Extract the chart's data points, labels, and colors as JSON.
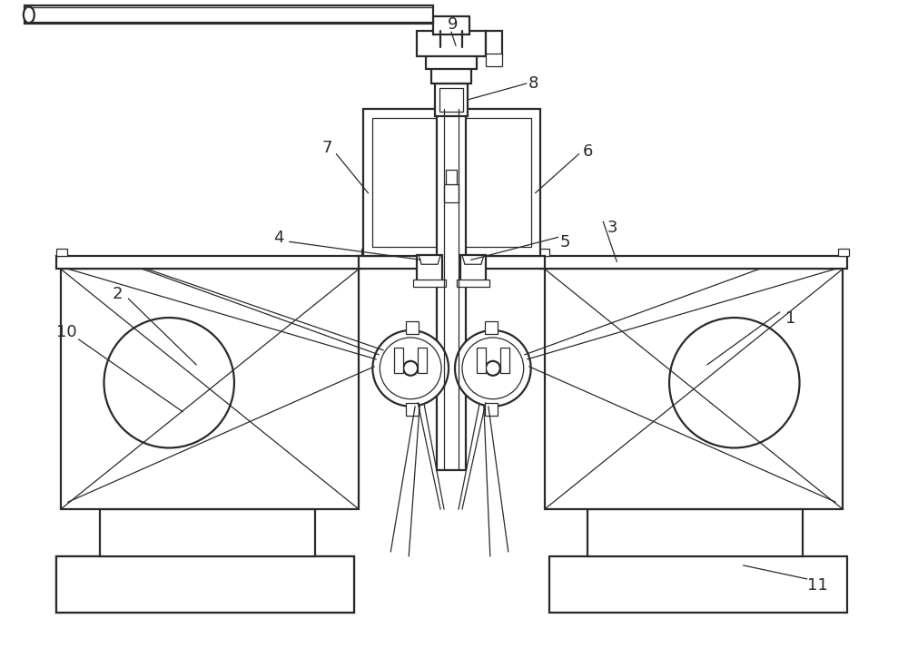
{
  "bg_color": "#ffffff",
  "line_color": "#2a2a2a",
  "lw_main": 1.6,
  "lw_thin": 0.9,
  "lw_thick": 2.2
}
